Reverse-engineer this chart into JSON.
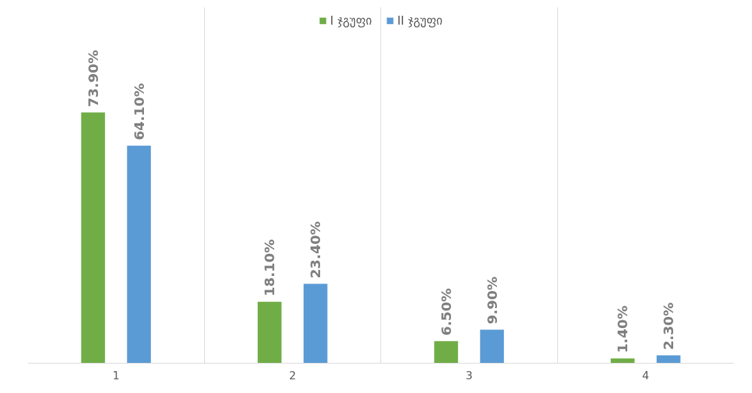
{
  "chart_data": {
    "type": "bar",
    "categories": [
      "1",
      "2",
      "3",
      "4"
    ],
    "series": [
      {
        "name": "I ჯგუფი",
        "color": "#70ad47",
        "values": [
          73.9,
          18.1,
          6.5,
          1.4
        ],
        "value_labels": [
          "73.90%",
          "18.10%",
          "6.50%",
          "1.40%"
        ]
      },
      {
        "name": "II ჯგუფი",
        "color": "#5b9bd5",
        "values": [
          64.1,
          23.4,
          9.9,
          2.3
        ],
        "value_labels": [
          "64.10%",
          "23.40%",
          "9.90%",
          "2.30%"
        ]
      }
    ],
    "grid": "x",
    "legend": "top"
  }
}
